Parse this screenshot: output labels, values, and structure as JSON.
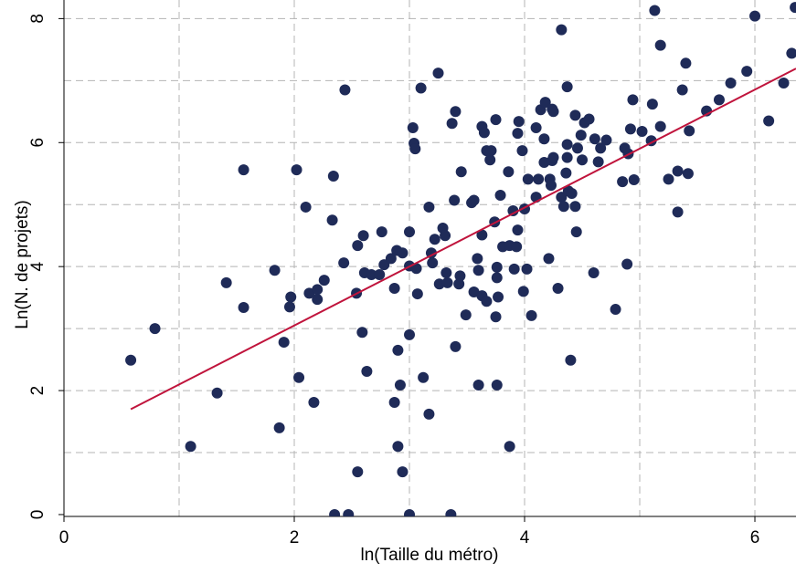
{
  "chart_data": {
    "type": "scatter",
    "xlabel": "ln(Taille du métro)",
    "ylabel": "Ln(N. de projets)",
    "xlim": [
      0,
      6.357
    ],
    "ylim": [
      -0.03,
      8.3
    ],
    "xticks": [
      0,
      2,
      4,
      6
    ],
    "yticks": [
      0,
      2,
      4,
      6,
      8
    ],
    "xgrid": [
      1,
      2,
      3,
      4,
      5,
      6
    ],
    "ygrid": [
      1,
      2,
      3,
      4,
      5,
      6,
      7,
      8
    ],
    "grid": true,
    "series": [
      {
        "color": "#1f2b58",
        "x": [
          0.58,
          0.79,
          1.1,
          1.33,
          1.41,
          1.56,
          1.56,
          1.83,
          1.87,
          1.91,
          1.96,
          1.97,
          2.02,
          2.04,
          2.1,
          2.13,
          2.17,
          2.2,
          2.2,
          2.26,
          2.33,
          2.34,
          2.35,
          2.43,
          2.44,
          2.47,
          2.54,
          2.55,
          2.55,
          2.6,
          2.59,
          2.63,
          2.61,
          2.67,
          2.74,
          2.76,
          2.78,
          2.84,
          2.87,
          2.87,
          2.89,
          2.9,
          2.9,
          2.92,
          2.94,
          2.94,
          3.0,
          3.0,
          3.0,
          3.0,
          3.03,
          3.04,
          3.05,
          3.06,
          3.07,
          3.1,
          3.12,
          3.17,
          3.17,
          3.19,
          3.2,
          3.22,
          3.25,
          3.26,
          3.29,
          3.31,
          3.32,
          3.33,
          3.36,
          3.37,
          3.39,
          3.4,
          3.4,
          3.43,
          3.44,
          3.45,
          3.49,
          3.54,
          3.56,
          3.56,
          3.59,
          3.6,
          3.6,
          3.63,
          3.63,
          3.63,
          3.65,
          3.67,
          3.67,
          3.7,
          3.71,
          3.75,
          3.74,
          3.75,
          3.76,
          3.76,
          3.76,
          3.77,
          3.79,
          3.81,
          3.86,
          3.87,
          3.87,
          3.9,
          3.91,
          3.93,
          3.94,
          3.94,
          3.95,
          3.98,
          3.99,
          4.0,
          4.02,
          4.03,
          4.06,
          4.1,
          4.1,
          4.12,
          4.14,
          4.17,
          4.17,
          4.18,
          4.21,
          4.22,
          4.23,
          4.24,
          4.24,
          4.25,
          4.25,
          4.29,
          4.32,
          4.32,
          4.34,
          4.36,
          4.37,
          4.37,
          4.37,
          4.38,
          4.4,
          4.41,
          4.44,
          4.44,
          4.45,
          4.46,
          4.49,
          4.5,
          4.52,
          4.56,
          4.6,
          4.61,
          4.64,
          4.66,
          4.71,
          4.79,
          4.85,
          4.87,
          4.89,
          4.9,
          4.92,
          4.94,
          4.95,
          5.02,
          5.1,
          5.11,
          5.13,
          5.18,
          5.18,
          5.25,
          5.33,
          5.33,
          5.37,
          5.4,
          5.42,
          5.43,
          5.58,
          5.69,
          5.79,
          5.93,
          6.0,
          6.12,
          6.25,
          6.32,
          6.35
        ],
        "y": [
          2.49,
          3.0,
          1.1,
          1.96,
          3.74,
          3.34,
          5.56,
          3.94,
          1.4,
          2.78,
          3.35,
          3.51,
          5.56,
          2.21,
          4.96,
          3.57,
          1.81,
          3.63,
          3.47,
          3.78,
          4.75,
          5.46,
          0,
          4.06,
          6.85,
          0,
          3.57,
          0.69,
          4.34,
          4.5,
          2.94,
          2.31,
          3.9,
          3.87,
          3.87,
          4.56,
          4.03,
          4.13,
          3.65,
          1.81,
          4.26,
          2.65,
          1.1,
          2.09,
          0.69,
          4.22,
          4.56,
          4.01,
          2.9,
          0,
          6.24,
          5.99,
          5.9,
          3.97,
          3.56,
          6.88,
          2.21,
          1.62,
          4.96,
          4.22,
          4.06,
          4.44,
          7.12,
          3.72,
          4.62,
          4.5,
          3.9,
          3.74,
          0,
          6.31,
          5.07,
          6.5,
          2.71,
          3.72,
          3.85,
          5.53,
          3.22,
          5.03,
          5.07,
          3.59,
          4.13,
          3.94,
          2.09,
          4.51,
          3.53,
          6.26,
          6.16,
          5.87,
          3.44,
          5.72,
          5.87,
          3.19,
          4.72,
          6.37,
          3.99,
          3.82,
          2.09,
          3.51,
          5.15,
          4.32,
          5.53,
          1.1,
          4.34,
          4.9,
          3.96,
          4.32,
          4.59,
          6.15,
          6.34,
          5.87,
          3.6,
          4.93,
          3.96,
          5.41,
          3.21,
          5.12,
          6.24,
          5.41,
          6.53,
          6.06,
          5.68,
          6.65,
          4.13,
          5.41,
          5.31,
          6.54,
          5.71,
          6.5,
          5.76,
          3.65,
          7.82,
          5.12,
          4.97,
          5.51,
          6.9,
          5.97,
          5.76,
          5.22,
          2.49,
          5.18,
          4.97,
          6.44,
          4.56,
          5.91,
          6.12,
          5.72,
          6.32,
          6.38,
          3.9,
          6.06,
          5.69,
          5.91,
          6.04,
          3.31,
          5.37,
          5.91,
          4.04,
          5.82,
          6.22,
          6.69,
          5.4,
          6.18,
          6.03,
          6.62,
          8.13,
          7.57,
          6.26,
          5.41,
          5.54,
          4.88,
          6.85,
          7.28,
          5.5,
          6.19,
          6.51,
          6.69,
          6.96,
          7.15,
          8.04,
          6.35,
          6.96,
          7.44,
          8.18
        ]
      }
    ],
    "fit": {
      "color": "#c0143c",
      "intercept": 1.148,
      "slope": 0.951,
      "x_range": [
        0.58,
        6.357
      ]
    }
  }
}
